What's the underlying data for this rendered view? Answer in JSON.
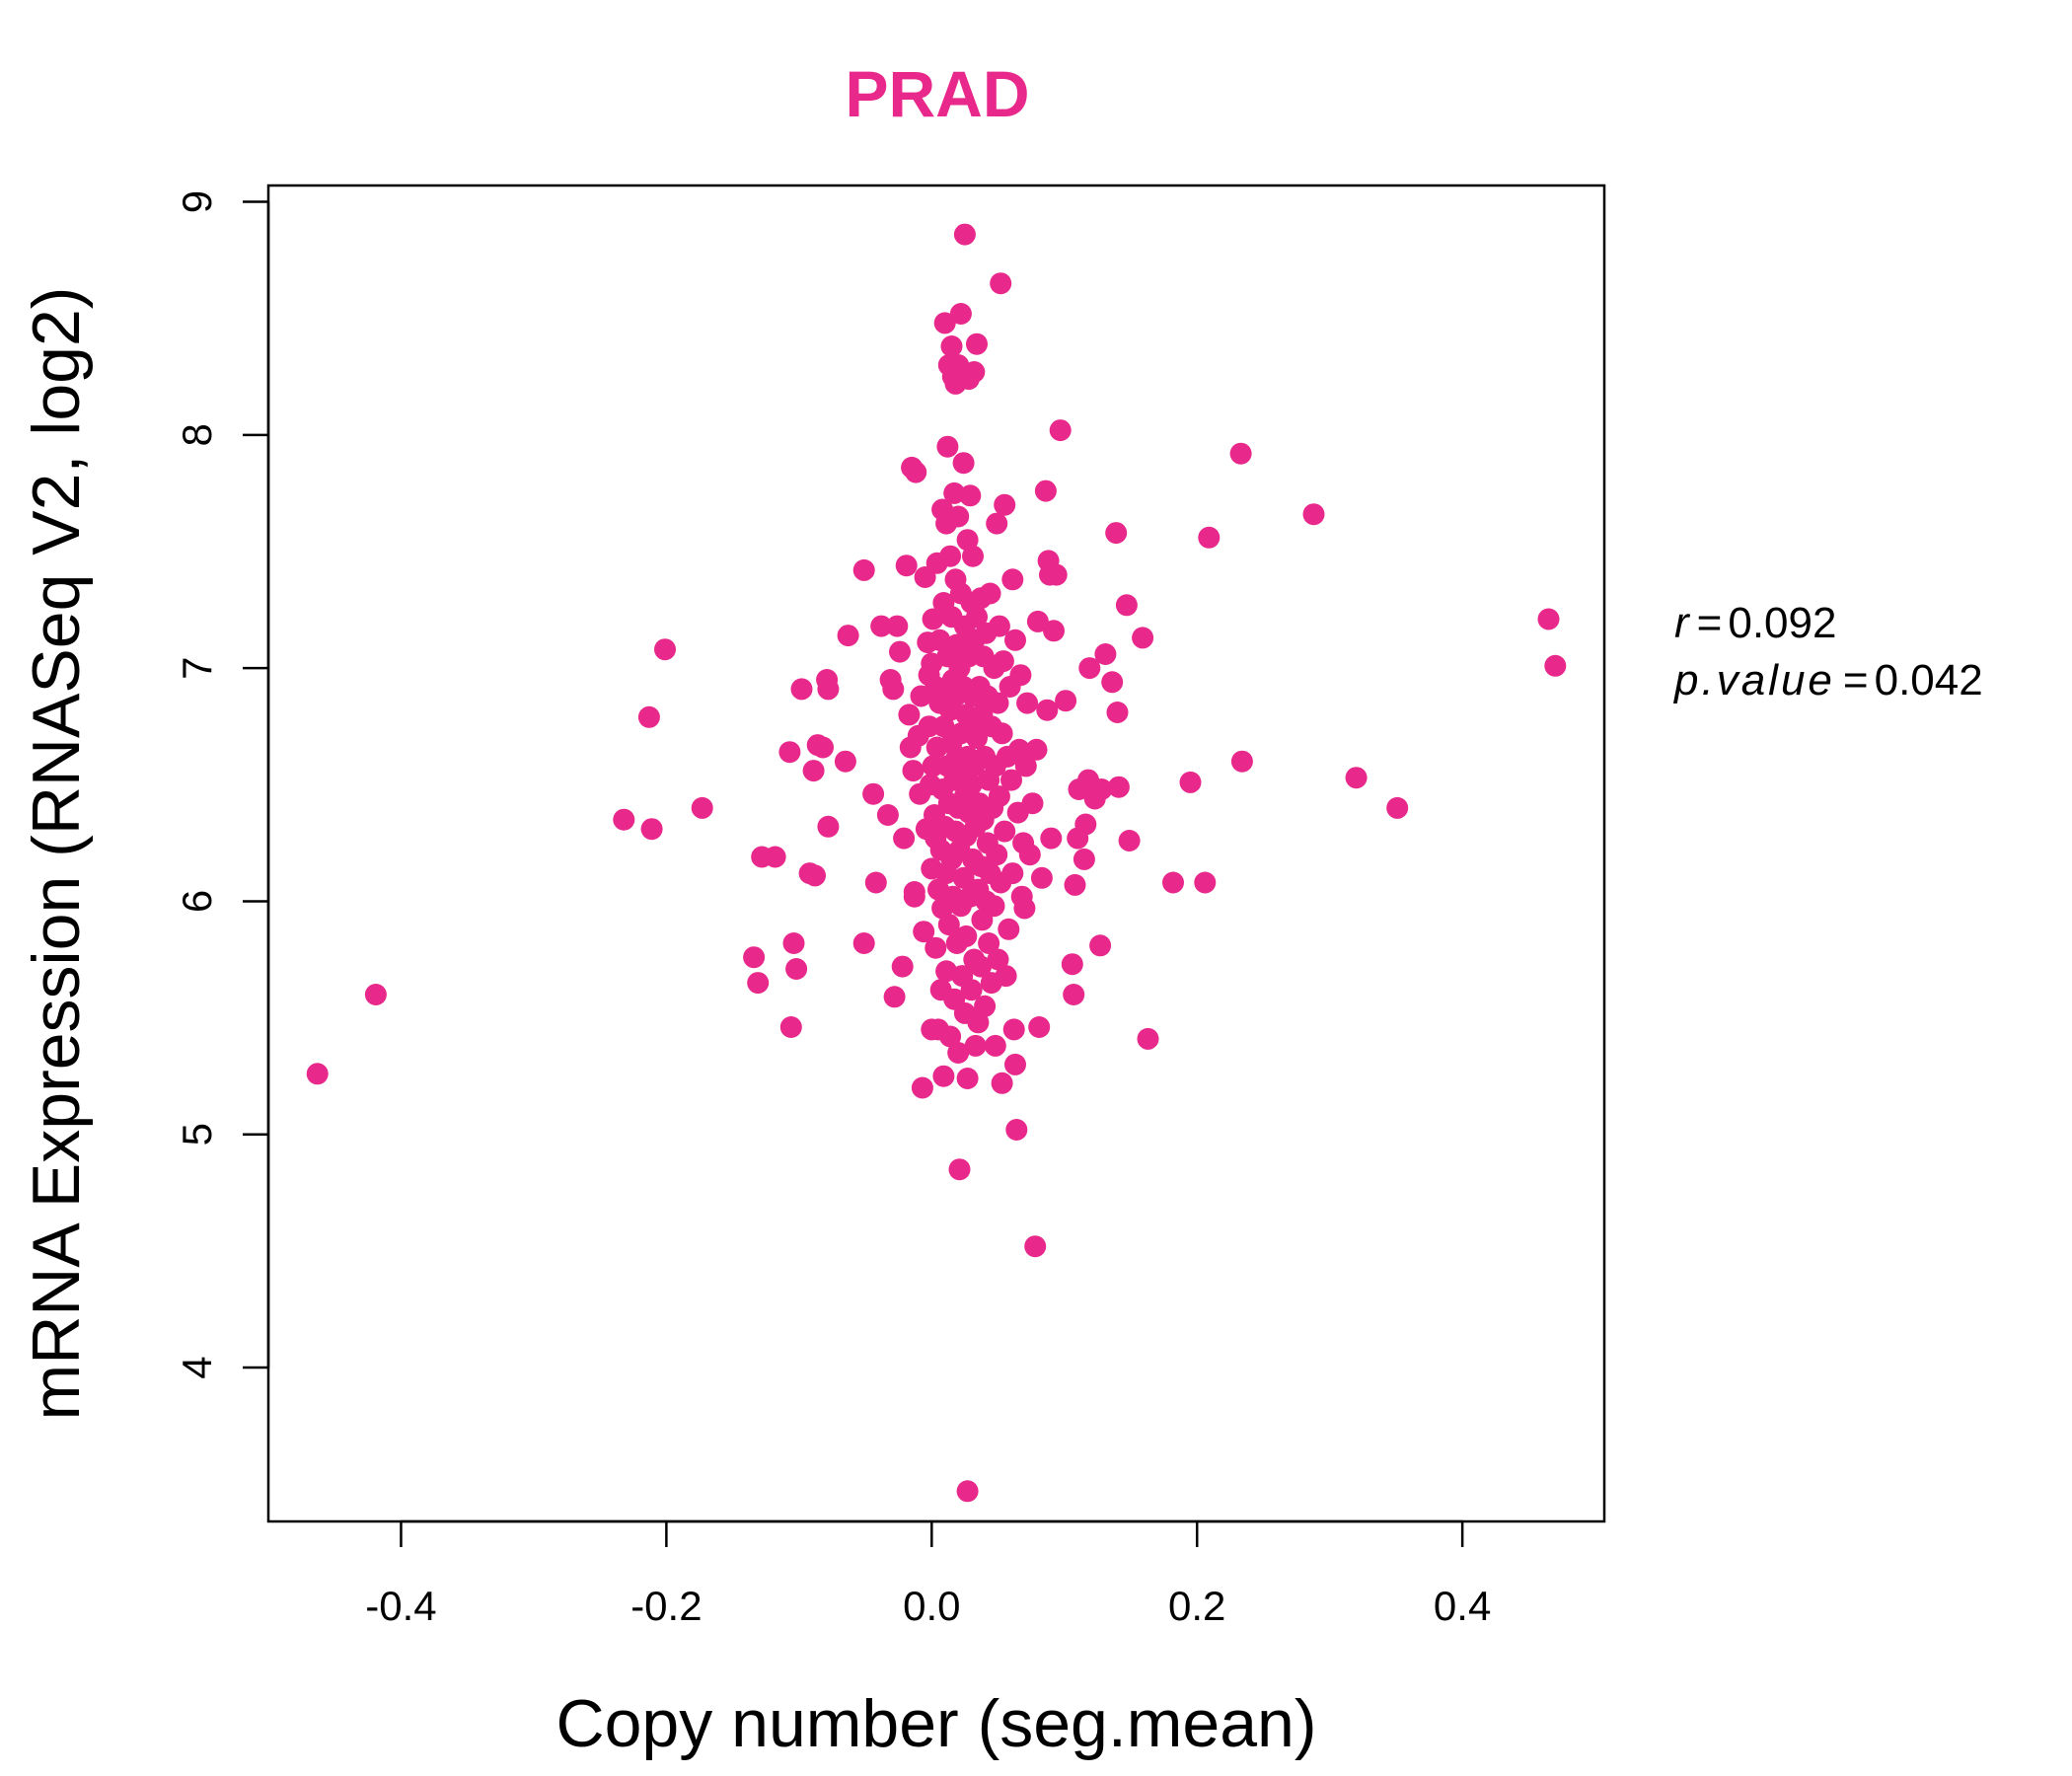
{
  "colors": {
    "point": "#E8288A",
    "title": "#E8288A",
    "axis": "#000000"
  },
  "chart_data": {
    "type": "scatter",
    "title": "PRAD",
    "xlabel": "Copy number (seg.mean)",
    "ylabel": "mRNA Expression (RNASeq V2, log2)",
    "xlim": [
      -0.5,
      0.507
    ],
    "ylim": [
      3.34,
      9.07
    ],
    "xticks": [
      -0.4,
      -0.2,
      0.0,
      0.2,
      0.4
    ],
    "xtick_labels": [
      "-0.4",
      "-0.2",
      "0.0",
      "0.2",
      "0.4"
    ],
    "yticks": [
      4,
      5,
      6,
      7,
      8,
      9
    ],
    "ytick_labels": [
      "4",
      "5",
      "6",
      "7",
      "8",
      "9"
    ],
    "grid": false,
    "stats": {
      "r_label": "r",
      "r_value": "0.092",
      "p_label": "p.value",
      "p_value": "0.042"
    },
    "points": [
      [
        -0.463,
        5.26
      ],
      [
        -0.419,
        5.6
      ],
      [
        -0.232,
        6.35
      ],
      [
        -0.213,
        6.79
      ],
      [
        -0.211,
        6.31
      ],
      [
        -0.201,
        7.08
      ],
      [
        -0.173,
        6.4
      ],
      [
        -0.134,
        5.76
      ],
      [
        -0.131,
        5.65
      ],
      [
        -0.128,
        6.19
      ],
      [
        -0.118,
        6.19
      ],
      [
        -0.107,
        6.64
      ],
      [
        -0.106,
        5.46
      ],
      [
        -0.104,
        5.82
      ],
      [
        -0.102,
        5.71
      ],
      [
        -0.098,
        6.91
      ],
      [
        -0.092,
        6.12
      ],
      [
        -0.089,
        6.56
      ],
      [
        -0.088,
        6.11
      ],
      [
        -0.086,
        6.67
      ],
      [
        -0.082,
        6.66
      ],
      [
        -0.079,
        6.95
      ],
      [
        -0.078,
        6.91
      ],
      [
        -0.078,
        6.32
      ],
      [
        -0.065,
        6.6
      ],
      [
        -0.063,
        7.14
      ],
      [
        -0.051,
        7.42
      ],
      [
        -0.051,
        5.82
      ],
      [
        -0.044,
        6.46
      ],
      [
        -0.042,
        6.08
      ],
      [
        -0.038,
        7.18
      ],
      [
        -0.033,
        6.37
      ],
      [
        -0.031,
        6.95
      ],
      [
        -0.029,
        6.91
      ],
      [
        -0.028,
        5.59
      ],
      [
        -0.026,
        7.18
      ],
      [
        -0.024,
        7.07
      ],
      [
        -0.022,
        5.72
      ],
      [
        -0.021,
        6.27
      ],
      [
        -0.019,
        7.44
      ],
      [
        -0.017,
        6.8
      ],
      [
        -0.016,
        6.66
      ],
      [
        -0.015,
        7.86
      ],
      [
        -0.014,
        6.56
      ],
      [
        -0.013,
        6.02
      ],
      [
        -0.013,
        6.04
      ],
      [
        -0.012,
        7.84
      ],
      [
        -0.01,
        6.71
      ],
      [
        -0.009,
        6.46
      ],
      [
        -0.008,
        6.88
      ],
      [
        -0.007,
        5.2
      ],
      [
        -0.006,
        5.87
      ],
      [
        -0.005,
        7.39
      ],
      [
        -0.004,
        6.31
      ],
      [
        -0.003,
        7.11
      ],
      [
        -0.002,
        6.97
      ],
      [
        -0.002,
        6.75
      ],
      [
        -0.001,
        6.5
      ],
      [
        0.0,
        7.02
      ],
      [
        0.0,
        6.14
      ],
      [
        0.0,
        5.45
      ],
      [
        0.001,
        7.21
      ],
      [
        0.001,
        6.58
      ],
      [
        0.002,
        6.37
      ],
      [
        0.003,
        6.92
      ],
      [
        0.003,
        6.27
      ],
      [
        0.003,
        5.8
      ],
      [
        0.004,
        7.45
      ],
      [
        0.004,
        6.66
      ],
      [
        0.005,
        6.05
      ],
      [
        0.005,
        5.45
      ],
      [
        0.006,
        7.12
      ],
      [
        0.006,
        6.85
      ],
      [
        0.007,
        6.22
      ],
      [
        0.007,
        5.62
      ],
      [
        0.008,
        7.68
      ],
      [
        0.008,
        6.48
      ],
      [
        0.008,
        5.97
      ],
      [
        0.009,
        7.28
      ],
      [
        0.009,
        6.75
      ],
      [
        0.009,
        5.25
      ],
      [
        0.01,
        8.48
      ],
      [
        0.01,
        6.91
      ],
      [
        0.01,
        6.32
      ],
      [
        0.011,
        7.62
      ],
      [
        0.011,
        6.12
      ],
      [
        0.011,
        5.7
      ],
      [
        0.012,
        7.95
      ],
      [
        0.012,
        7.05
      ],
      [
        0.012,
        6.58
      ],
      [
        0.013,
        8.3
      ],
      [
        0.013,
        6.42
      ],
      [
        0.013,
        5.9
      ],
      [
        0.014,
        7.48
      ],
      [
        0.014,
        6.82
      ],
      [
        0.014,
        5.42
      ],
      [
        0.015,
        8.38
      ],
      [
        0.015,
        7.22
      ],
      [
        0.015,
        6.68
      ],
      [
        0.015,
        6.18
      ],
      [
        0.016,
        8.25
      ],
      [
        0.016,
        6.95
      ],
      [
        0.016,
        6.02
      ],
      [
        0.017,
        7.75
      ],
      [
        0.017,
        6.52
      ],
      [
        0.017,
        5.58
      ],
      [
        0.018,
        8.22
      ],
      [
        0.018,
        7.38
      ],
      [
        0.018,
        6.88
      ],
      [
        0.018,
        6.3
      ],
      [
        0.019,
        7.1
      ],
      [
        0.019,
        6.62
      ],
      [
        0.019,
        5.82
      ],
      [
        0.02,
        8.3
      ],
      [
        0.02,
        7.65
      ],
      [
        0.02,
        6.4
      ],
      [
        0.02,
        5.35
      ],
      [
        0.021,
        4.85
      ],
      [
        0.021,
        7.0
      ],
      [
        0.021,
        6.22
      ],
      [
        0.022,
        8.52
      ],
      [
        0.022,
        7.32
      ],
      [
        0.022,
        6.72
      ],
      [
        0.022,
        5.98
      ],
      [
        0.023,
        6.55
      ],
      [
        0.023,
        5.68
      ],
      [
        0.024,
        7.88
      ],
      [
        0.024,
        6.92
      ],
      [
        0.024,
        6.1
      ],
      [
        0.025,
        8.86
      ],
      [
        0.025,
        7.18
      ],
      [
        0.025,
        6.45
      ],
      [
        0.025,
        5.52
      ],
      [
        0.026,
        6.8
      ],
      [
        0.026,
        6.28
      ],
      [
        0.026,
        5.85
      ],
      [
        0.027,
        3.47
      ],
      [
        0.027,
        7.55
      ],
      [
        0.027,
        6.62
      ],
      [
        0.027,
        5.24
      ],
      [
        0.028,
        8.24
      ],
      [
        0.028,
        7.05
      ],
      [
        0.028,
        6.38
      ],
      [
        0.029,
        7.74
      ],
      [
        0.029,
        6.75
      ],
      [
        0.029,
        6.02
      ],
      [
        0.03,
        7.28
      ],
      [
        0.03,
        6.5
      ],
      [
        0.03,
        5.62
      ],
      [
        0.031,
        7.48
      ],
      [
        0.031,
        6.88
      ],
      [
        0.031,
        6.18
      ],
      [
        0.032,
        8.27
      ],
      [
        0.032,
        7.12
      ],
      [
        0.032,
        6.58
      ],
      [
        0.032,
        5.75
      ],
      [
        0.033,
        6.32
      ],
      [
        0.033,
        5.38
      ],
      [
        0.034,
        8.39
      ],
      [
        0.034,
        7.22
      ],
      [
        0.034,
        6.7
      ],
      [
        0.035,
        6.05
      ],
      [
        0.035,
        5.48
      ],
      [
        0.036,
        6.92
      ],
      [
        0.036,
        6.42
      ],
      [
        0.037,
        7.3
      ],
      [
        0.037,
        6.15
      ],
      [
        0.037,
        5.72
      ],
      [
        0.038,
        6.8
      ],
      [
        0.038,
        5.92
      ],
      [
        0.039,
        7.05
      ],
      [
        0.039,
        6.35
      ],
      [
        0.04,
        6.62
      ],
      [
        0.04,
        5.55
      ],
      [
        0.041,
        7.15
      ],
      [
        0.041,
        6.0
      ],
      [
        0.042,
        6.88
      ],
      [
        0.042,
        6.25
      ],
      [
        0.043,
        6.52
      ],
      [
        0.043,
        5.82
      ],
      [
        0.044,
        7.32
      ],
      [
        0.044,
        6.12
      ],
      [
        0.045,
        6.75
      ],
      [
        0.045,
        5.65
      ],
      [
        0.046,
        6.4
      ],
      [
        0.047,
        7.0
      ],
      [
        0.047,
        5.98
      ],
      [
        0.048,
        6.58
      ],
      [
        0.048,
        5.38
      ],
      [
        0.049,
        7.62
      ],
      [
        0.049,
        6.2
      ],
      [
        0.05,
        6.85
      ],
      [
        0.05,
        5.75
      ],
      [
        0.051,
        7.18
      ],
      [
        0.051,
        6.45
      ],
      [
        0.052,
        8.65
      ],
      [
        0.052,
        6.08
      ],
      [
        0.053,
        6.72
      ],
      [
        0.053,
        5.22
      ],
      [
        0.054,
        7.03
      ],
      [
        0.055,
        7.7
      ],
      [
        0.055,
        6.3
      ],
      [
        0.056,
        5.68
      ],
      [
        0.057,
        6.62
      ],
      [
        0.058,
        5.88
      ],
      [
        0.059,
        6.92
      ],
      [
        0.06,
        6.52
      ],
      [
        0.061,
        7.38
      ],
      [
        0.061,
        6.12
      ],
      [
        0.062,
        5.45
      ],
      [
        0.063,
        7.12
      ],
      [
        0.063,
        5.3
      ],
      [
        0.064,
        5.02
      ],
      [
        0.065,
        6.38
      ],
      [
        0.066,
        6.65
      ],
      [
        0.067,
        6.97
      ],
      [
        0.068,
        6.02
      ],
      [
        0.069,
        6.25
      ],
      [
        0.07,
        5.97
      ],
      [
        0.071,
        6.58
      ],
      [
        0.072,
        6.85
      ],
      [
        0.074,
        6.2
      ],
      [
        0.076,
        6.42
      ],
      [
        0.078,
        4.52
      ],
      [
        0.079,
        6.65
      ],
      [
        0.08,
        7.2
      ],
      [
        0.081,
        5.46
      ],
      [
        0.083,
        6.1
      ],
      [
        0.086,
        7.76
      ],
      [
        0.087,
        6.82
      ],
      [
        0.088,
        7.46
      ],
      [
        0.089,
        7.4
      ],
      [
        0.09,
        6.27
      ],
      [
        0.092,
        7.16
      ],
      [
        0.094,
        7.4
      ],
      [
        0.097,
        8.02
      ],
      [
        0.101,
        6.86
      ],
      [
        0.106,
        5.73
      ],
      [
        0.107,
        5.6
      ],
      [
        0.108,
        6.07
      ],
      [
        0.11,
        6.27
      ],
      [
        0.111,
        6.48
      ],
      [
        0.115,
        6.18
      ],
      [
        0.116,
        6.33
      ],
      [
        0.118,
        6.52
      ],
      [
        0.119,
        7.0
      ],
      [
        0.123,
        6.44
      ],
      [
        0.127,
        5.81
      ],
      [
        0.128,
        6.48
      ],
      [
        0.131,
        7.06
      ],
      [
        0.136,
        6.94
      ],
      [
        0.139,
        7.58
      ],
      [
        0.14,
        6.81
      ],
      [
        0.141,
        6.49
      ],
      [
        0.147,
        7.27
      ],
      [
        0.149,
        6.26
      ],
      [
        0.159,
        7.13
      ],
      [
        0.163,
        5.41
      ],
      [
        0.182,
        6.08
      ],
      [
        0.195,
        6.51
      ],
      [
        0.206,
        6.08
      ],
      [
        0.209,
        7.56
      ],
      [
        0.233,
        7.92
      ],
      [
        0.234,
        6.6
      ],
      [
        0.288,
        7.66
      ],
      [
        0.32,
        6.53
      ],
      [
        0.351,
        6.4
      ],
      [
        0.465,
        7.21
      ],
      [
        0.47,
        7.01
      ]
    ]
  }
}
